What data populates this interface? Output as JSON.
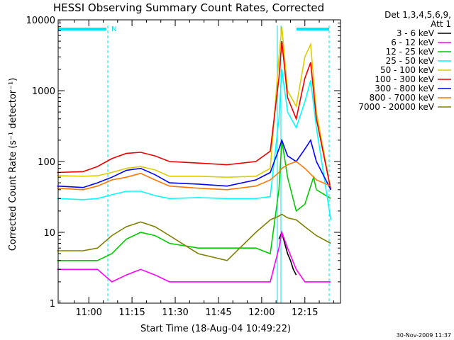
{
  "chart_data": {
    "type": "line",
    "title": "HESSI Observing Summary Count Rates, Corrected",
    "xlabel": "Start Time (18-Aug-04 10:49:22)",
    "ylabel": "Corrected Count Rate (s⁻¹ detector⁻¹)",
    "y_scale": "log",
    "ylim": [
      1,
      10000
    ],
    "y_ticks": [
      {
        "value": 1,
        "label": "1"
      },
      {
        "value": 10,
        "label": "10"
      },
      {
        "value": 100,
        "label": "100"
      },
      {
        "value": 1000,
        "label": "1000"
      },
      {
        "value": 10000,
        "label": "10000"
      }
    ],
    "x_ticks": [
      "11:00",
      "11:15",
      "11:30",
      "11:45",
      "12:00",
      "12:15"
    ],
    "xlim_minutes_from_start": [
      0,
      98
    ],
    "legend_header": [
      "Det 1,3,4,5,6,9,",
      "Att 1"
    ],
    "legend_position": "right",
    "annotations": {
      "top_bar_label": "N"
    },
    "series": [
      {
        "name": "3 - 6 keV",
        "color": "#000000",
        "times": [
          "12:06",
          "12:07",
          "12:08",
          "12:09",
          "12:10",
          "12:11",
          "12:12"
        ],
        "values": [
          8,
          10,
          7,
          5,
          4,
          3,
          2.5
        ]
      },
      {
        "name": "6 - 12 keV",
        "color": "#ff00ff",
        "times": [
          "10:49",
          "10:58",
          "11:03",
          "11:08",
          "11:13",
          "11:18",
          "11:23",
          "11:28",
          "11:38",
          "11:48",
          "11:58",
          "12:03",
          "12:06",
          "12:07",
          "12:09",
          "12:12",
          "12:15",
          "12:19",
          "12:24"
        ],
        "values": [
          3,
          3,
          3,
          2,
          2.5,
          3,
          2.5,
          2,
          2,
          2,
          2,
          2,
          6,
          10,
          6,
          3,
          2,
          2,
          2
        ]
      },
      {
        "name": "12 - 25 keV",
        "color": "#00cc00",
        "times": [
          "10:49",
          "10:58",
          "11:03",
          "11:08",
          "11:13",
          "11:18",
          "11:23",
          "11:28",
          "11:38",
          "11:48",
          "11:58",
          "12:03",
          "12:06",
          "12:07",
          "12:09",
          "12:12",
          "12:15",
          "12:18",
          "12:19",
          "12:24"
        ],
        "values": [
          4,
          4,
          4,
          5,
          8,
          10,
          9,
          7,
          6,
          6,
          6,
          5,
          40,
          200,
          60,
          20,
          25,
          60,
          40,
          30
        ]
      },
      {
        "name": "25 - 50 keV",
        "color": "#00ffff",
        "times": [
          "10:49",
          "10:58",
          "11:03",
          "11:08",
          "11:13",
          "11:18",
          "11:23",
          "11:28",
          "11:38",
          "11:48",
          "11:58",
          "12:03",
          "12:06",
          "12:07",
          "12:09",
          "12:12",
          "12:15",
          "12:17",
          "12:19",
          "12:24"
        ],
        "values": [
          30,
          29,
          30,
          34,
          38,
          38,
          33,
          30,
          31,
          30,
          30,
          32,
          400,
          2000,
          500,
          300,
          700,
          1400,
          300,
          15
        ]
      },
      {
        "name": "50 - 100 keV",
        "color": "#ddcc00",
        "times": [
          "10:49",
          "10:58",
          "11:03",
          "11:08",
          "11:13",
          "11:18",
          "11:23",
          "11:28",
          "11:38",
          "11:48",
          "11:58",
          "12:03",
          "12:06",
          "12:07",
          "12:09",
          "12:12",
          "12:15",
          "12:17",
          "12:19",
          "12:24"
        ],
        "values": [
          63,
          62,
          63,
          70,
          80,
          85,
          76,
          62,
          62,
          60,
          62,
          80,
          3000,
          8000,
          1000,
          600,
          3000,
          4500,
          500,
          40
        ]
      },
      {
        "name": "100 - 300 keV",
        "color": "#ee0000",
        "times": [
          "10:49",
          "10:58",
          "11:03",
          "11:08",
          "11:13",
          "11:18",
          "11:23",
          "11:28",
          "11:38",
          "11:48",
          "11:58",
          "12:03",
          "12:06",
          "12:07",
          "12:09",
          "12:12",
          "12:15",
          "12:17",
          "12:19",
          "12:24"
        ],
        "values": [
          70,
          72,
          85,
          110,
          130,
          135,
          120,
          100,
          95,
          90,
          100,
          140,
          1500,
          5000,
          800,
          400,
          1500,
          2500,
          400,
          40
        ]
      },
      {
        "name": "300 - 800 keV",
        "color": "#0000ff",
        "times": [
          "10:49",
          "10:58",
          "11:03",
          "11:08",
          "11:13",
          "11:18",
          "11:23",
          "11:28",
          "11:38",
          "11:48",
          "11:58",
          "12:03",
          "12:06",
          "12:07",
          "12:09",
          "12:12",
          "12:15",
          "12:17",
          "12:19",
          "12:24"
        ],
        "values": [
          45,
          43,
          50,
          60,
          75,
          80,
          65,
          50,
          48,
          45,
          55,
          70,
          150,
          200,
          120,
          100,
          150,
          200,
          100,
          40
        ]
      },
      {
        "name": "800 - 7000 keV",
        "color": "#ff7700",
        "times": [
          "10:49",
          "10:58",
          "11:03",
          "11:08",
          "11:13",
          "11:18",
          "11:23",
          "11:28",
          "11:38",
          "11:48",
          "11:58",
          "12:03",
          "12:06",
          "12:07",
          "12:09",
          "12:12",
          "12:15",
          "12:19",
          "12:24"
        ],
        "values": [
          42,
          40,
          45,
          55,
          60,
          68,
          55,
          45,
          42,
          40,
          45,
          55,
          70,
          80,
          90,
          100,
          80,
          55,
          45
        ]
      },
      {
        "name": "7000 - 20000 keV",
        "color": "#808000",
        "times": [
          "10:49",
          "10:58",
          "11:03",
          "11:08",
          "11:13",
          "11:18",
          "11:23",
          "11:28",
          "11:38",
          "11:48",
          "11:58",
          "12:03",
          "12:06",
          "12:07",
          "12:09",
          "12:12",
          "12:15",
          "12:19",
          "12:24"
        ],
        "values": [
          5.5,
          5.5,
          6,
          9,
          12,
          14,
          12,
          9,
          5,
          4,
          10,
          15,
          17,
          18,
          16,
          15,
          12,
          9,
          7
        ]
      }
    ]
  },
  "footer": {
    "timestamp": "30-Nov-2009 11:37"
  }
}
